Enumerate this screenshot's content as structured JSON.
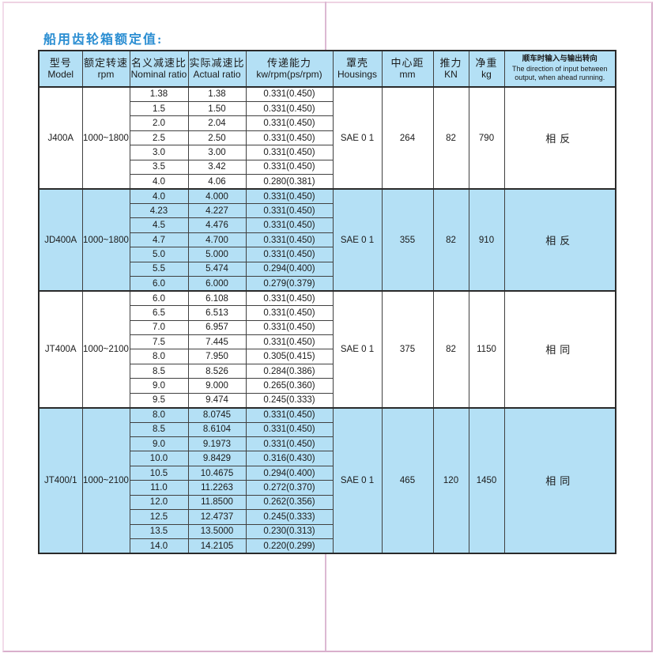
{
  "page": {
    "title": "船用齿轮箱额定值:"
  },
  "colors": {
    "highlight_blue": "#b4e0f5",
    "title_blue": "#2b8ed2",
    "frame_pink": "#eed3e2",
    "gutter_pink": "#dcb9d3",
    "border_dark": "#404040"
  },
  "table": {
    "headers": [
      {
        "zh": "型号",
        "en": "Model"
      },
      {
        "zh": "额定转速",
        "en": "rpm"
      },
      {
        "zh": "名义减速比",
        "en": "Nominal ratio"
      },
      {
        "zh": "实际减速比",
        "en": "Actual ratio"
      },
      {
        "zh": "传递能力",
        "en": "kw/rpm(ps/rpm)"
      },
      {
        "zh": "罩壳",
        "en": "Housings"
      },
      {
        "zh": "中心距",
        "en": "mm"
      },
      {
        "zh": "推力",
        "en": "KN"
      },
      {
        "zh": "净重",
        "en": "kg"
      },
      {
        "zh": "顺车时输入与输出转向",
        "en": "The direction of input between output, when ahead running."
      }
    ],
    "groups": [
      {
        "model": "J400A",
        "rpm": "1000~1800",
        "housing": "SAE 0 1",
        "center_distance_mm": "264",
        "thrust_kn": "82",
        "weight_kg": "790",
        "direction": "相反",
        "highlight": false,
        "rows": [
          [
            "1.38",
            "1.38",
            "0.331(0.450)"
          ],
          [
            "1.5",
            "1.50",
            "0.331(0.450)"
          ],
          [
            "2.0",
            "2.04",
            "0.331(0.450)"
          ],
          [
            "2.5",
            "2.50",
            "0.331(0.450)"
          ],
          [
            "3.0",
            "3.00",
            "0.331(0.450)"
          ],
          [
            "3.5",
            "3.42",
            "0.331(0.450)"
          ],
          [
            "4.0",
            "4.06",
            "0.280(0.381)"
          ]
        ]
      },
      {
        "model": "JD400A",
        "rpm": "1000~1800",
        "housing": "SAE 0 1",
        "center_distance_mm": "355",
        "thrust_kn": "82",
        "weight_kg": "910",
        "direction": "相反",
        "highlight": true,
        "rows": [
          [
            "4.0",
            "4.000",
            "0.331(0.450)"
          ],
          [
            "4.23",
            "4.227",
            "0.331(0.450)"
          ],
          [
            "4.5",
            "4.476",
            "0.331(0.450)"
          ],
          [
            "4.7",
            "4.700",
            "0.331(0.450)"
          ],
          [
            "5.0",
            "5.000",
            "0.331(0.450)"
          ],
          [
            "5.5",
            "5.474",
            "0.294(0.400)"
          ],
          [
            "6.0",
            "6.000",
            "0.279(0.379)"
          ]
        ]
      },
      {
        "model": "JT400A",
        "rpm": "1000~2100",
        "housing": "SAE 0 1",
        "center_distance_mm": "375",
        "thrust_kn": "82",
        "weight_kg": "1150",
        "direction": "相同",
        "highlight": false,
        "rows": [
          [
            "6.0",
            "6.108",
            "0.331(0.450)"
          ],
          [
            "6.5",
            "6.513",
            "0.331(0.450)"
          ],
          [
            "7.0",
            "6.957",
            "0.331(0.450)"
          ],
          [
            "7.5",
            "7.445",
            "0.331(0.450)"
          ],
          [
            "8.0",
            "7.950",
            "0.305(0.415)"
          ],
          [
            "8.5",
            "8.526",
            "0.284(0.386)"
          ],
          [
            "9.0",
            "9.000",
            "0.265(0.360)"
          ],
          [
            "9.5",
            "9.474",
            "0.245(0.333)"
          ]
        ]
      },
      {
        "model": "JT400/1",
        "rpm": "1000~2100",
        "housing": "SAE 0 1",
        "center_distance_mm": "465",
        "thrust_kn": "120",
        "weight_kg": "1450",
        "direction": "相同",
        "highlight": true,
        "rows": [
          [
            "8.0",
            "8.0745",
            "0.331(0.450)"
          ],
          [
            "8.5",
            "8.6104",
            "0.331(0.450)"
          ],
          [
            "9.0",
            "9.1973",
            "0.331(0.450)"
          ],
          [
            "10.0",
            "9.8429",
            "0.316(0.430)"
          ],
          [
            "10.5",
            "10.4675",
            "0.294(0.400)"
          ],
          [
            "11.0",
            "11.2263",
            "0.272(0.370)"
          ],
          [
            "12.0",
            "11.8500",
            "0.262(0.356)"
          ],
          [
            "12.5",
            "12.4737",
            "0.245(0.333)"
          ],
          [
            "13.5",
            "13.5000",
            "0.230(0.313)"
          ],
          [
            "14.0",
            "14.2105",
            "0.220(0.299)"
          ]
        ]
      }
    ]
  }
}
